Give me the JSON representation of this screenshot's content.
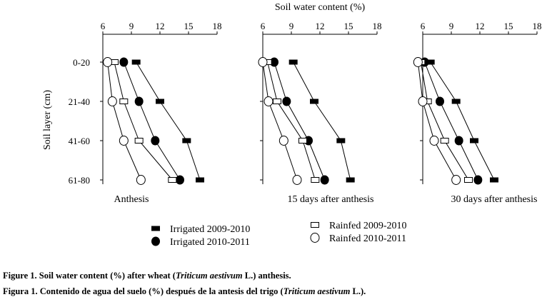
{
  "chart_data": {
    "type": "scatter",
    "title": "Soil water content (%)",
    "ylabel": "Soil layer (cm)",
    "xlim": [
      6,
      18
    ],
    "x_ticks": [
      6,
      9,
      12,
      15,
      18
    ],
    "categories": [
      "0-20",
      "21-40",
      "41-60",
      "61-80"
    ],
    "series_meta": [
      {
        "name": "Irrigated 2009-2010",
        "marker": "filled-rect"
      },
      {
        "name": "Irrigated 2010-2011",
        "marker": "filled-circle"
      },
      {
        "name": "Rainfed 2009-2010",
        "marker": "open-rect"
      },
      {
        "name": "Rainfed 2010-2011",
        "marker": "open-circle"
      }
    ],
    "panels": [
      {
        "label": "Anthesis",
        "series": [
          {
            "name": "Irrigated 2009-2010",
            "values": [
              9.5,
              12.0,
              14.8,
              16.2
            ]
          },
          {
            "name": "Irrigated 2010-2011",
            "values": [
              8.2,
              9.8,
              11.5,
              14.1
            ]
          },
          {
            "name": "Rainfed 2009-2010",
            "values": [
              7.2,
              8.2,
              9.8,
              13.3
            ]
          },
          {
            "name": "Rainfed 2010-2011",
            "values": [
              6.5,
              7.0,
              8.2,
              10.0
            ]
          }
        ]
      },
      {
        "label": "15 days after anthesis",
        "series": [
          {
            "name": "Irrigated 2009-2010",
            "values": [
              9.2,
              11.4,
              14.2,
              15.2
            ]
          },
          {
            "name": "Irrigated 2010-2011",
            "values": [
              7.2,
              8.5,
              10.8,
              12.5
            ]
          },
          {
            "name": "Rainfed 2009-2010",
            "values": [
              6.5,
              7.5,
              10.2,
              11.5
            ]
          },
          {
            "name": "Rainfed 2010-2011",
            "values": [
              6.0,
              6.6,
              8.2,
              9.6
            ]
          }
        ]
      },
      {
        "label": "30 days after anthesis",
        "series": [
          {
            "name": "Irrigated 2009-2010",
            "values": [
              6.8,
              9.5,
              11.4,
              13.5
            ]
          },
          {
            "name": "Irrigated 2010-2011",
            "values": [
              6.2,
              7.8,
              9.8,
              11.8
            ]
          },
          {
            "name": "Rainfed 2009-2010",
            "values": [
              5.8,
              6.5,
              8.3,
              10.8
            ]
          },
          {
            "name": "Rainfed 2010-2011",
            "values": [
              5.5,
              6.0,
              7.2,
              9.5
            ]
          }
        ]
      }
    ]
  },
  "caption": {
    "en_prefix": "Figure 1. Soil water content (%) after wheat (",
    "en_italic": "Triticum aestivum",
    "en_suffix": " L.) anthesis.",
    "es_prefix": "Figura 1. Contenido de agua del suelo (%) después de la antesis del trigo (",
    "es_italic": "Triticum aestivum",
    "es_suffix": " L.)."
  }
}
